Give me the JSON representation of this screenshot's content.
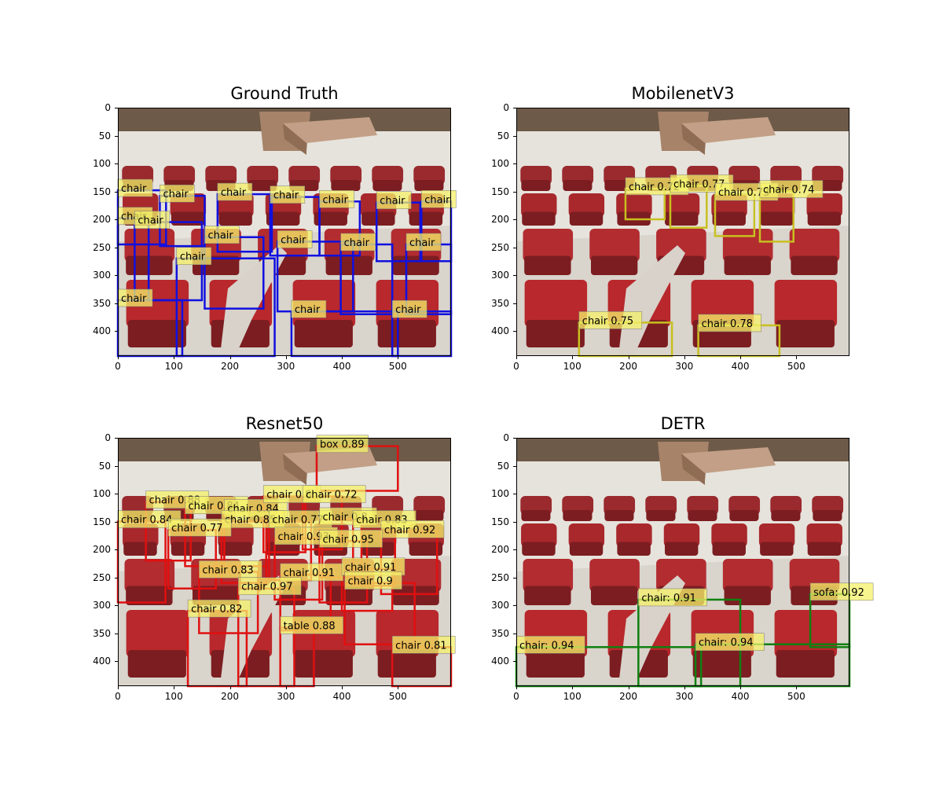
{
  "panels": [
    {
      "title": "Ground Truth",
      "box_color": "#1010e0",
      "label_bg": "#f5f26a",
      "boxes": [
        {
          "x1": 0,
          "y1": 148,
          "x2": 86,
          "y2": 245,
          "label": "chair"
        },
        {
          "x1": 75,
          "y1": 158,
          "x2": 155,
          "y2": 248,
          "label": "chair"
        },
        {
          "x1": 178,
          "y1": 155,
          "x2": 275,
          "y2": 258,
          "label": "chair"
        },
        {
          "x1": 272,
          "y1": 160,
          "x2": 360,
          "y2": 265,
          "label": "chair"
        },
        {
          "x1": 360,
          "y1": 168,
          "x2": 432,
          "y2": 265,
          "label": "chair"
        },
        {
          "x1": 462,
          "y1": 170,
          "x2": 540,
          "y2": 275,
          "label": "chair"
        },
        {
          "x1": 542,
          "y1": 168,
          "x2": 595,
          "y2": 275,
          "label": "chair"
        },
        {
          "x1": 0,
          "y1": 198,
          "x2": 55,
          "y2": 345,
          "label": "chair"
        },
        {
          "x1": 30,
          "y1": 205,
          "x2": 150,
          "y2": 345,
          "label": "chair"
        },
        {
          "x1": 155,
          "y1": 232,
          "x2": 260,
          "y2": 360,
          "label": "chair"
        },
        {
          "x1": 285,
          "y1": 240,
          "x2": 420,
          "y2": 365,
          "label": "chair"
        },
        {
          "x1": 398,
          "y1": 245,
          "x2": 490,
          "y2": 370,
          "label": "chair"
        },
        {
          "x1": 515,
          "y1": 245,
          "x2": 595,
          "y2": 370,
          "label": "chair"
        },
        {
          "x1": 105,
          "y1": 270,
          "x2": 280,
          "y2": 445,
          "label": "chair"
        },
        {
          "x1": 0,
          "y1": 345,
          "x2": 115,
          "y2": 445,
          "label": "chair"
        },
        {
          "x1": 310,
          "y1": 365,
          "x2": 500,
          "y2": 445,
          "label": "chair"
        },
        {
          "x1": 490,
          "y1": 365,
          "x2": 595,
          "y2": 445,
          "label": "chair"
        }
      ]
    },
    {
      "title": "MobilenetV3",
      "box_color": "#c8c020",
      "label_bg": "#f5f26a",
      "boxes": [
        {
          "x1": 195,
          "y1": 145,
          "x2": 265,
          "y2": 200,
          "label": "chair 0.72"
        },
        {
          "x1": 275,
          "y1": 140,
          "x2": 340,
          "y2": 215,
          "label": "chair 0.77"
        },
        {
          "x1": 355,
          "y1": 155,
          "x2": 425,
          "y2": 230,
          "label": "chair 0.73"
        },
        {
          "x1": 435,
          "y1": 150,
          "x2": 495,
          "y2": 240,
          "label": "chair 0.74"
        },
        {
          "x1": 112,
          "y1": 385,
          "x2": 278,
          "y2": 445,
          "label": "chair 0.75"
        },
        {
          "x1": 325,
          "y1": 390,
          "x2": 470,
          "y2": 445,
          "label": "chair 0.78"
        }
      ]
    },
    {
      "title": "Resnet50",
      "box_color": "#e01010",
      "label_bg": "#f5f26a",
      "boxes": [
        {
          "x1": 355,
          "y1": 15,
          "x2": 500,
          "y2": 95,
          "label": "box 0.89"
        },
        {
          "x1": 50,
          "y1": 115,
          "x2": 130,
          "y2": 220,
          "label": "chair 0.88"
        },
        {
          "x1": 0,
          "y1": 150,
          "x2": 85,
          "y2": 295,
          "label": "chair 0.84"
        },
        {
          "x1": 120,
          "y1": 125,
          "x2": 190,
          "y2": 230,
          "label": "chair 0.84"
        },
        {
          "x1": 190,
          "y1": 130,
          "x2": 265,
          "y2": 230,
          "label": "chair 0.84"
        },
        {
          "x1": 260,
          "y1": 105,
          "x2": 335,
          "y2": 205,
          "label": "chair 0.8"
        },
        {
          "x1": 330,
          "y1": 105,
          "x2": 400,
          "y2": 200,
          "label": "chair 0.72"
        },
        {
          "x1": 185,
          "y1": 150,
          "x2": 265,
          "y2": 260,
          "label": "chair 0.85"
        },
        {
          "x1": 270,
          "y1": 150,
          "x2": 345,
          "y2": 255,
          "label": "chair 0.77"
        },
        {
          "x1": 360,
          "y1": 145,
          "x2": 435,
          "y2": 250,
          "label": "chair 0.8"
        },
        {
          "x1": 420,
          "y1": 150,
          "x2": 495,
          "y2": 265,
          "label": "chair 0.83"
        },
        {
          "x1": 470,
          "y1": 168,
          "x2": 570,
          "y2": 280,
          "label": "chair 0.92"
        },
        {
          "x1": 90,
          "y1": 165,
          "x2": 175,
          "y2": 270,
          "label": "chair 0.77"
        },
        {
          "x1": 280,
          "y1": 180,
          "x2": 365,
          "y2": 290,
          "label": "chair 0.93"
        },
        {
          "x1": 360,
          "y1": 185,
          "x2": 445,
          "y2": 295,
          "label": "chair 0.95"
        },
        {
          "x1": 145,
          "y1": 240,
          "x2": 250,
          "y2": 350,
          "label": "chair 0.83"
        },
        {
          "x1": 290,
          "y1": 245,
          "x2": 380,
          "y2": 345,
          "label": "chair 0.91"
        },
        {
          "x1": 400,
          "y1": 235,
          "x2": 490,
          "y2": 310,
          "label": "chair 0.91"
        },
        {
          "x1": 215,
          "y1": 270,
          "x2": 315,
          "y2": 445,
          "label": "chair 0.97"
        },
        {
          "x1": 125,
          "y1": 310,
          "x2": 230,
          "y2": 445,
          "label": "chair 0.82"
        },
        {
          "x1": 290,
          "y1": 340,
          "x2": 350,
          "y2": 445,
          "label": "table 0.88"
        },
        {
          "x1": 405,
          "y1": 260,
          "x2": 530,
          "y2": 370,
          "label": "chair 0.9"
        },
        {
          "x1": 490,
          "y1": 375,
          "x2": 595,
          "y2": 445,
          "label": "chair 0.81"
        }
      ]
    },
    {
      "title": "DETR",
      "box_color": "#108010",
      "label_bg": "#f5f26a",
      "boxes": [
        {
          "x1": 0,
          "y1": 375,
          "x2": 330,
          "y2": 445,
          "label": "chair: 0.94"
        },
        {
          "x1": 218,
          "y1": 290,
          "x2": 400,
          "y2": 445,
          "label": "chair: 0.91"
        },
        {
          "x1": 320,
          "y1": 370,
          "x2": 595,
          "y2": 445,
          "label": "chair: 0.94"
        },
        {
          "x1": 525,
          "y1": 280,
          "x2": 595,
          "y2": 375,
          "label": "sofa: 0.92"
        }
      ]
    }
  ],
  "axes": {
    "x_ticks": [
      0,
      100,
      200,
      300,
      400,
      500
    ],
    "y_ticks": [
      0,
      50,
      100,
      150,
      200,
      250,
      300,
      350,
      400
    ],
    "xlim": [
      0,
      595
    ],
    "ylim": [
      0,
      445
    ]
  }
}
